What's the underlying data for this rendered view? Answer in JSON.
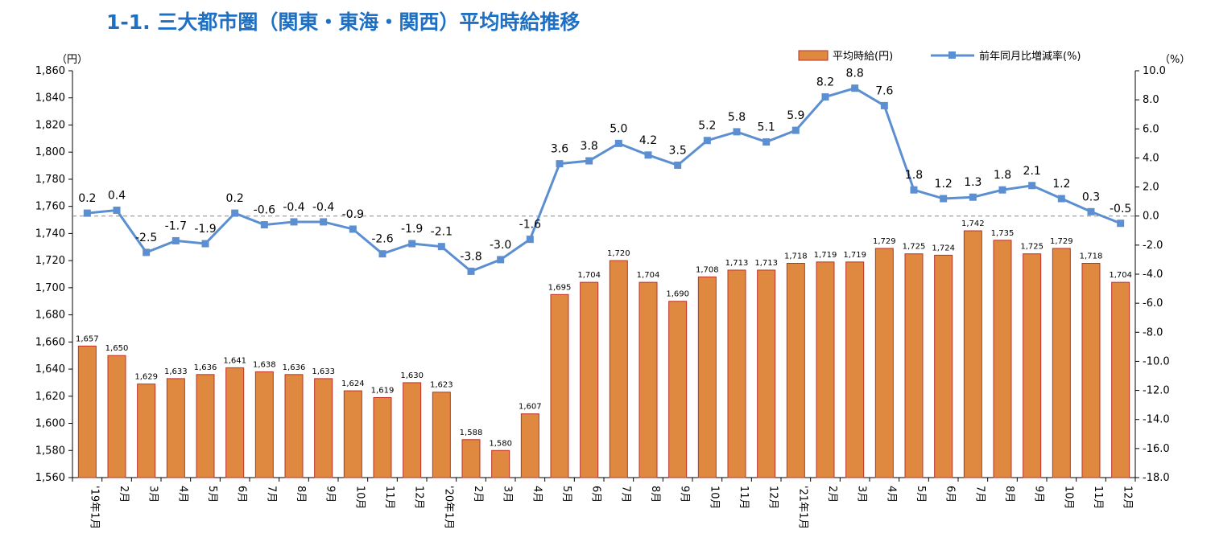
{
  "title": "1-1. 三大都市圏（関東・東海・関西）平均時給推移",
  "chart_data": {
    "type": "bar",
    "categories": [
      "'19年1月",
      "2月",
      "3月",
      "4月",
      "5月",
      "6月",
      "7月",
      "8月",
      "9月",
      "10月",
      "11月",
      "12月",
      "'20年1月",
      "2月",
      "3月",
      "4月",
      "5月",
      "6月",
      "7月",
      "8月",
      "9月",
      "10月",
      "11月",
      "12月",
      "'21年1月",
      "2月",
      "3月",
      "4月",
      "5月",
      "6月",
      "7月",
      "8月",
      "9月",
      "10月",
      "11月",
      "12月"
    ],
    "series": [
      {
        "name": "平均時給(円)",
        "type": "bar",
        "axis": "left",
        "color": "#de8840",
        "values": [
          1657,
          1650,
          1629,
          1633,
          1636,
          1641,
          1638,
          1636,
          1633,
          1624,
          1619,
          1630,
          1623,
          1588,
          1580,
          1607,
          1695,
          1704,
          1720,
          1704,
          1690,
          1708,
          1713,
          1713,
          1718,
          1719,
          1719,
          1729,
          1725,
          1724,
          1742,
          1735,
          1725,
          1729,
          1718,
          1704
        ],
        "labels": [
          "1,657",
          "1,650",
          "1,629",
          "1,633",
          "1,636",
          "1,641",
          "1,638",
          "1,636",
          "1,633",
          "1,624",
          "1,619",
          "1,630",
          "1,623",
          "1,588",
          "1,580",
          "1,607",
          "1,695",
          "1,704",
          "1,720",
          "1,704",
          "1,690",
          "1,708",
          "1,713",
          "1,713",
          "1,718",
          "1,719",
          "1,719",
          "1,729",
          "1,725",
          "1,724",
          "1,742",
          "1,735",
          "1,725",
          "1,729",
          "1,718",
          "1,704"
        ]
      },
      {
        "name": "前年同月比増減率(%)",
        "type": "line",
        "axis": "right",
        "color": "#5b8fd2",
        "values": [
          0.2,
          0.4,
          -2.5,
          -1.7,
          -1.9,
          0.2,
          -0.6,
          -0.4,
          -0.4,
          -0.9,
          -2.6,
          -1.9,
          -2.1,
          -3.8,
          -3.0,
          -1.6,
          3.6,
          3.8,
          5.0,
          4.2,
          3.5,
          5.2,
          5.8,
          5.1,
          5.9,
          8.2,
          8.8,
          7.6,
          1.8,
          1.2,
          1.3,
          1.8,
          2.1,
          1.2,
          0.3,
          -0.5
        ],
        "labels": [
          "0.2",
          "0.4",
          "-2.5",
          "-1.7",
          "-1.9",
          "0.2",
          "-0.6",
          "-0.4",
          "-0.4",
          "-0.9",
          "-2.6",
          "-1.9",
          "-2.1",
          "-3.8",
          "-3.0",
          "-1.6",
          "3.6",
          "3.8",
          "5.0",
          "4.2",
          "3.5",
          "5.2",
          "5.8",
          "5.1",
          "5.9",
          "8.2",
          "8.8",
          "7.6",
          "1.8",
          "1.2",
          "1.3",
          "1.8",
          "2.1",
          "1.2",
          "0.3",
          "-0.5"
        ]
      }
    ],
    "y_left": {
      "unit_label": "（円）",
      "min": 1560,
      "max": 1860,
      "step": 20,
      "tick_labels": [
        "1,560",
        "1,580",
        "1,600",
        "1,620",
        "1,640",
        "1,660",
        "1,680",
        "1,700",
        "1,720",
        "1,740",
        "1,760",
        "1,780",
        "1,800",
        "1,820",
        "1,840",
        "1,860"
      ]
    },
    "y_right": {
      "unit_label": "（%）",
      "min": -18,
      "max": 10,
      "step": 2,
      "tick_labels": [
        "-18.0",
        "-16.0",
        "-14.0",
        "-12.0",
        "-10.0",
        "-8.0",
        "-6.0",
        "-4.0",
        "-2.0",
        "0.0",
        "2.0",
        "4.0",
        "6.0",
        "8.0",
        "10.0"
      ]
    },
    "reference_line": {
      "axis": "right",
      "value": 0
    },
    "grid": false,
    "legend": {
      "position": "top-right"
    }
  }
}
